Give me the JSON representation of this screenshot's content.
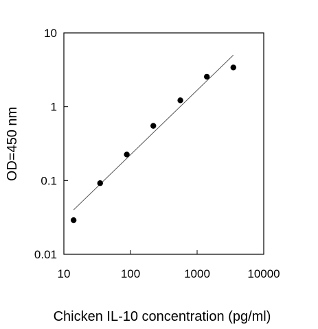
{
  "chart_data": {
    "type": "scatter",
    "title": "",
    "xlabel": "Chicken IL-10 concentration (pg/ml)",
    "ylabel": "OD=450 nm",
    "x_scale": "log",
    "y_scale": "log",
    "xlim": [
      10,
      10000
    ],
    "ylim": [
      0.01,
      10
    ],
    "x_ticks": [
      "10",
      "100",
      "1000",
      "10000"
    ],
    "y_ticks": [
      "0.01",
      "0.1",
      "1",
      "10"
    ],
    "grid": false,
    "legend": "none",
    "series": [
      {
        "points": [
          {
            "x": 14,
            "y": 0.029
          },
          {
            "x": 35,
            "y": 0.092
          },
          {
            "x": 88,
            "y": 0.225
          },
          {
            "x": 220,
            "y": 0.55
          },
          {
            "x": 560,
            "y": 1.22
          },
          {
            "x": 1400,
            "y": 2.55
          },
          {
            "x": 3500,
            "y": 3.4
          }
        ],
        "marker_color": "#000000"
      }
    ],
    "fit_line": {
      "points": [
        {
          "x": 14,
          "y": 0.04
        },
        {
          "x": 3500,
          "y": 5.0
        }
      ],
      "color": "#555555"
    }
  }
}
